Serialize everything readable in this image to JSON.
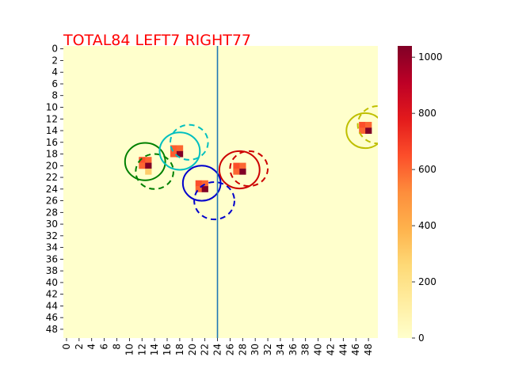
{
  "chart_data": {
    "type": "heatmap",
    "title": "TOTAL84  LEFT7 RIGHT77",
    "title_color": "#ff0000",
    "xlabel": "",
    "ylabel": "",
    "grid_size": [
      50,
      50
    ],
    "x_ticks": [
      "0",
      "2",
      "4",
      "6",
      "8",
      "10",
      "12",
      "14",
      "16",
      "18",
      "20",
      "22",
      "24",
      "26",
      "28",
      "30",
      "32",
      "34",
      "36",
      "38",
      "40",
      "42",
      "44",
      "46",
      "48"
    ],
    "y_ticks": [
      "0",
      "2",
      "4",
      "6",
      "8",
      "10",
      "12",
      "14",
      "16",
      "18",
      "20",
      "22",
      "24",
      "26",
      "28",
      "30",
      "32",
      "34",
      "36",
      "38",
      "40",
      "42",
      "44",
      "46",
      "48"
    ],
    "colormap": "YlOrRd",
    "colorbar": {
      "min": 0,
      "max": 1040,
      "ticks": [
        "0",
        "200",
        "400",
        "600",
        "800",
        "1000"
      ]
    },
    "cells": [
      {
        "col": 12,
        "row": 19,
        "value": 650
      },
      {
        "col": 13,
        "row": 19,
        "value": 600
      },
      {
        "col": 12,
        "row": 20,
        "value": 600
      },
      {
        "col": 13,
        "row": 20,
        "value": 1040
      },
      {
        "col": 13,
        "row": 21,
        "value": 300
      },
      {
        "col": 17,
        "row": 17,
        "value": 620
      },
      {
        "col": 18,
        "row": 17,
        "value": 600
      },
      {
        "col": 17,
        "row": 18,
        "value": 620
      },
      {
        "col": 18,
        "row": 18,
        "value": 1040
      },
      {
        "col": 21,
        "row": 23,
        "value": 650
      },
      {
        "col": 22,
        "row": 23,
        "value": 600
      },
      {
        "col": 21,
        "row": 24,
        "value": 600
      },
      {
        "col": 22,
        "row": 24,
        "value": 1040
      },
      {
        "col": 27,
        "row": 20,
        "value": 650
      },
      {
        "col": 28,
        "row": 20,
        "value": 600
      },
      {
        "col": 27,
        "row": 21,
        "value": 600
      },
      {
        "col": 28,
        "row": 21,
        "value": 1040
      },
      {
        "col": 47,
        "row": 13,
        "value": 650
      },
      {
        "col": 48,
        "row": 13,
        "value": 600
      },
      {
        "col": 47,
        "row": 14,
        "value": 600
      },
      {
        "col": 48,
        "row": 14,
        "value": 1040
      }
    ],
    "vertical_line": {
      "x": 24.5,
      "color": "#1f77b4"
    },
    "circles": [
      {
        "cx": 13.0,
        "cy": 19.8,
        "r": 3.2,
        "color": "#008000",
        "style": "solid"
      },
      {
        "cx": 14.5,
        "cy": 21.5,
        "r": 3.0,
        "color": "#008000",
        "style": "dashed"
      },
      {
        "cx": 18.5,
        "cy": 18.0,
        "r": 3.2,
        "color": "#00bfbf",
        "style": "solid"
      },
      {
        "cx": 20.0,
        "cy": 16.5,
        "r": 3.0,
        "color": "#00bfbf",
        "style": "dashed"
      },
      {
        "cx": 22.0,
        "cy": 23.5,
        "r": 3.0,
        "color": "#0000cc",
        "style": "solid"
      },
      {
        "cx": 24.0,
        "cy": 26.5,
        "r": 3.2,
        "color": "#0000cc",
        "style": "dashed"
      },
      {
        "cx": 28.0,
        "cy": 21.2,
        "r": 3.2,
        "color": "#cc0000",
        "style": "solid"
      },
      {
        "cx": 29.5,
        "cy": 21.0,
        "r": 3.0,
        "color": "#cc0000",
        "style": "dashed"
      },
      {
        "cx": 48.0,
        "cy": 14.5,
        "r": 3.0,
        "color": "#bfbf00",
        "style": "solid"
      },
      {
        "cx": 50.0,
        "cy": 13.5,
        "r": 3.2,
        "color": "#bfbf00",
        "style": "dashed"
      }
    ]
  }
}
